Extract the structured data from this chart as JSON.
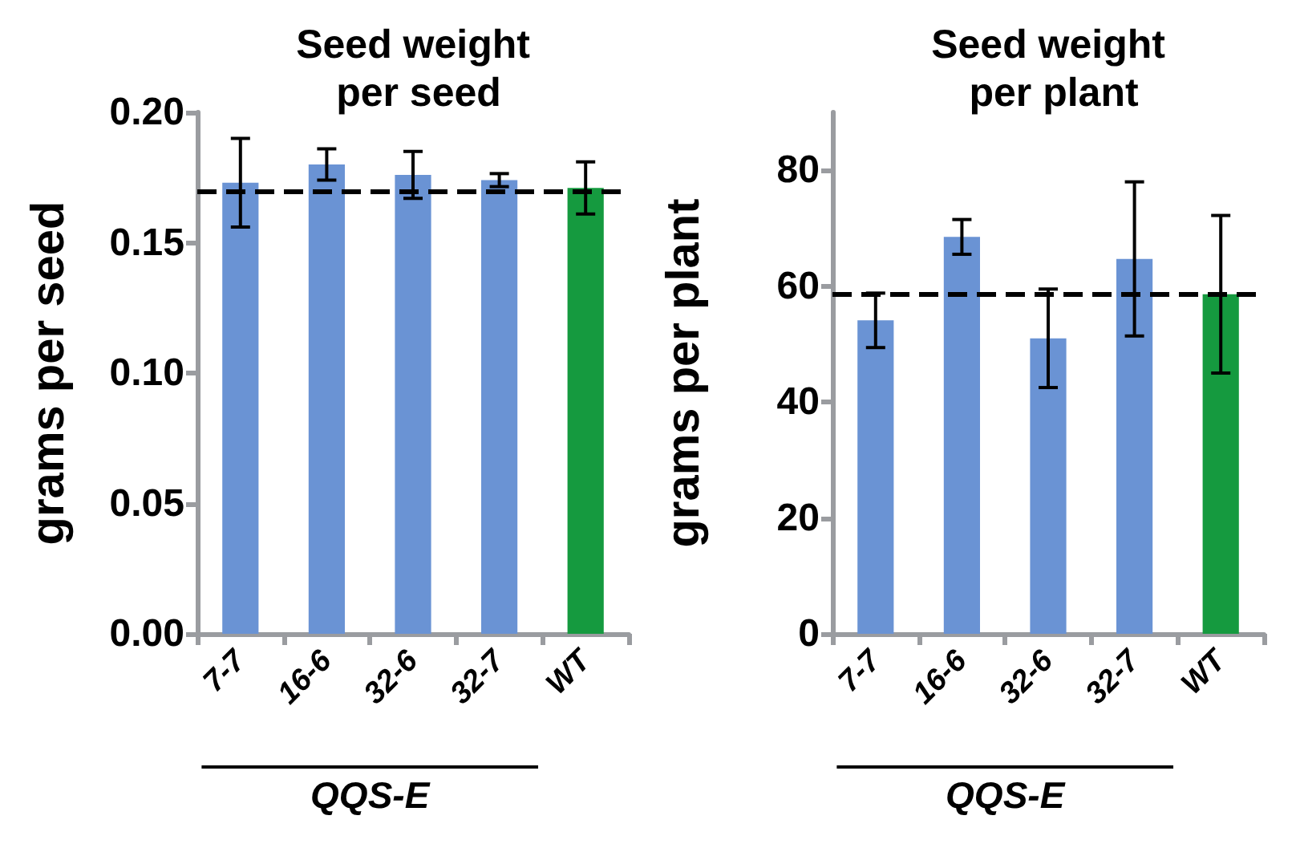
{
  "chart_data": [
    {
      "type": "bar",
      "title": "Seed weight per seed",
      "ylabel": "grams per seed",
      "categories": [
        "7-7",
        "16-6",
        "32-6",
        "32-7",
        "WT"
      ],
      "values": [
        0.173,
        0.18,
        0.176,
        0.174,
        0.171
      ],
      "errors": [
        0.017,
        0.006,
        0.009,
        0.0025,
        0.01
      ],
      "colors": [
        "#6a93d4",
        "#6a93d4",
        "#6a93d4",
        "#6a93d4",
        "#159a3f"
      ],
      "ylim": [
        0,
        0.2
      ],
      "yticks": [
        {
          "value": 0,
          "label": "0.00"
        },
        {
          "value": 0.05,
          "label": "0.05"
        },
        {
          "value": 0.1,
          "label": "0.10"
        },
        {
          "value": 0.15,
          "label": "0.15"
        },
        {
          "value": 0.2,
          "label": "0.20"
        }
      ],
      "ref_lines": [
        {
          "axis": "y",
          "value": 0.17,
          "color": "#000000",
          "line_style": "dashed"
        }
      ],
      "annotations": [
        "QQS-E"
      ],
      "grid": false
    },
    {
      "type": "bar",
      "title": "Seed weight per plant",
      "ylabel": "grams per plant",
      "categories": [
        "7-7",
        "16-6",
        "32-6",
        "32-7",
        "WT"
      ],
      "values": [
        54.1,
        68.5,
        51.0,
        64.7,
        58.6
      ],
      "errors": [
        4.7,
        3,
        8.5,
        13.3,
        13.6
      ],
      "colors": [
        "#6a93d4",
        "#6a93d4",
        "#6a93d4",
        "#6a93d4",
        "#159a3f"
      ],
      "ylim": [
        0,
        90
      ],
      "yticks": [
        0,
        20,
        40,
        60,
        80
      ],
      "ref_lines": [
        {
          "axis": "y",
          "value": 58.6,
          "color": "#000000",
          "line_style": "dashed"
        }
      ],
      "annotations": [
        "QQS-E"
      ],
      "grid": false
    }
  ]
}
